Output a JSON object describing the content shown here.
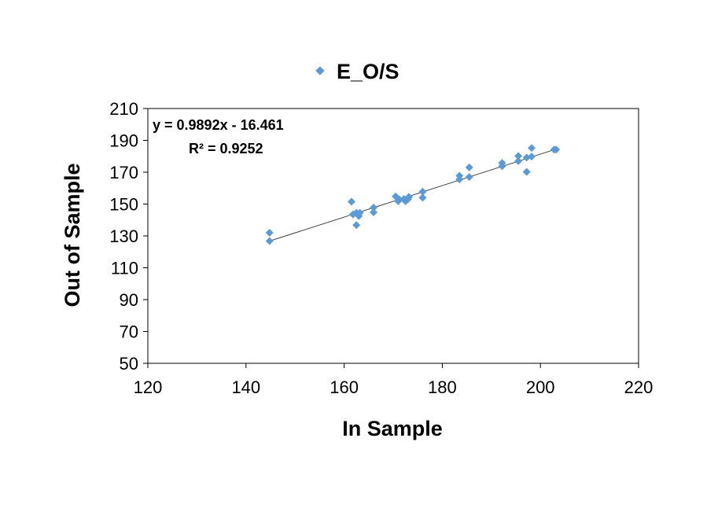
{
  "chart_data": {
    "type": "scatter",
    "legend": {
      "label": "E_O/S",
      "position": "top"
    },
    "xlabel": "In Sample",
    "ylabel": "Out of Sample",
    "xlim": [
      120,
      220
    ],
    "ylim": [
      50,
      210
    ],
    "xticks": [
      120,
      140,
      160,
      180,
      200,
      220
    ],
    "yticks": [
      50,
      70,
      90,
      110,
      130,
      150,
      170,
      190,
      210
    ],
    "grid": false,
    "marker_color": "#5B9BD5",
    "trendline_color": "#404040",
    "series": [
      {
        "name": "E_O/S",
        "points": [
          [
            144.8,
            132.0
          ],
          [
            144.8,
            126.8
          ],
          [
            161.5,
            151.5
          ],
          [
            161.8,
            143.5
          ],
          [
            162.5,
            144.5
          ],
          [
            162.5,
            136.8
          ],
          [
            163.0,
            142.5
          ],
          [
            163.2,
            144.5
          ],
          [
            166.0,
            147.8
          ],
          [
            166.0,
            144.8
          ],
          [
            170.5,
            154.8
          ],
          [
            171.0,
            151.8
          ],
          [
            171.2,
            153.0
          ],
          [
            172.2,
            153.2
          ],
          [
            172.5,
            151.8
          ],
          [
            173.0,
            153.0
          ],
          [
            173.2,
            154.5
          ],
          [
            176.0,
            157.8
          ],
          [
            176.0,
            154.0
          ],
          [
            183.5,
            167.8
          ],
          [
            183.5,
            165.5
          ],
          [
            185.5,
            173.0
          ],
          [
            185.5,
            167.0
          ],
          [
            192.2,
            175.8
          ],
          [
            192.2,
            173.8
          ],
          [
            195.5,
            180.2
          ],
          [
            195.5,
            177.0
          ],
          [
            197.2,
            179.2
          ],
          [
            197.2,
            170.2
          ],
          [
            198.2,
            185.2
          ],
          [
            198.2,
            179.8
          ],
          [
            202.8,
            184.2
          ],
          [
            203.2,
            184.2
          ]
        ]
      }
    ],
    "trendline": {
      "equation": "y = 0.9892x - 16.461",
      "r_squared": "R² = 0.9252",
      "slope": 0.9892,
      "intercept": -16.461,
      "x_range": [
        144.8,
        203.2
      ]
    }
  }
}
